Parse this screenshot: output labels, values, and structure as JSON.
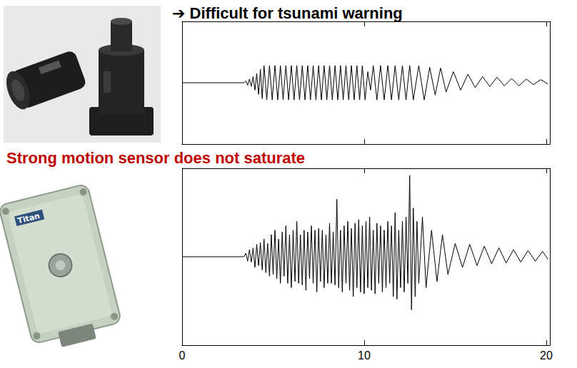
{
  "header": {
    "text": "➔ Difficult for tsunami warning",
    "color": "#000000"
  },
  "caption": {
    "text": "Strong motion sensor does not saturate",
    "color": "#c00000"
  },
  "images": {
    "strong_motion_label": "Titan"
  },
  "chart_data": [
    {
      "type": "line",
      "xlim": [
        0,
        20.2
      ],
      "xticks": [
        0,
        10,
        20
      ],
      "ylim": [
        -1,
        1
      ],
      "grid": false,
      "tick_labels": false,
      "series": [
        {
          "color": "#000000",
          "x": [
            0,
            3.4,
            3.5,
            3.6,
            3.7,
            3.8,
            3.9,
            4.0,
            4.1,
            4.2,
            4.3,
            4.4,
            4.5,
            4.65,
            4.8,
            4.95,
            5.1,
            5.25,
            5.4,
            5.55,
            5.7,
            5.85,
            6.0,
            6.15,
            6.3,
            6.45,
            6.6,
            6.75,
            6.9,
            7.05,
            7.2,
            7.35,
            7.5,
            7.65,
            7.8,
            7.95,
            8.1,
            8.25,
            8.4,
            8.55,
            8.7,
            8.85,
            9.0,
            9.15,
            9.3,
            9.45,
            9.6,
            9.75,
            9.9,
            10.05,
            10.2,
            10.35,
            10.5,
            10.7,
            10.9,
            11.1,
            11.3,
            11.5,
            11.7,
            11.9,
            12.1,
            12.3,
            12.5,
            12.7,
            13.0,
            13.3,
            13.6,
            13.9,
            14.2,
            14.5,
            14.9,
            15.3,
            15.7,
            16.1,
            16.5,
            16.9,
            17.3,
            17.7,
            18.1,
            18.5,
            18.9,
            19.3,
            19.7,
            20.1
          ],
          "values": [
            0,
            0,
            0.03,
            -0.04,
            0.06,
            -0.06,
            0.1,
            -0.12,
            0.15,
            -0.19,
            0.22,
            -0.26,
            0.28,
            -0.28,
            0.28,
            -0.28,
            0.28,
            -0.28,
            0.28,
            -0.28,
            0.28,
            -0.28,
            0.28,
            -0.28,
            0.28,
            -0.28,
            0.28,
            -0.28,
            0.28,
            -0.28,
            0.28,
            -0.28,
            0.28,
            -0.28,
            0.28,
            -0.28,
            0.28,
            -0.28,
            0.28,
            -0.28,
            0.28,
            -0.28,
            0.28,
            -0.28,
            0.28,
            -0.28,
            0.28,
            -0.28,
            0.28,
            -0.28,
            0.18,
            -0.12,
            0.28,
            -0.28,
            0.28,
            -0.28,
            0.28,
            -0.28,
            0.28,
            -0.28,
            0.28,
            -0.28,
            0.28,
            -0.28,
            0.28,
            -0.28,
            0.25,
            -0.2,
            0.24,
            -0.15,
            0.18,
            -0.12,
            0.14,
            -0.08,
            0.1,
            -0.06,
            0.09,
            -0.05,
            0.07,
            -0.05,
            0.06,
            -0.03,
            0.05,
            -0.02
          ]
        }
      ]
    },
    {
      "type": "line",
      "xlim": [
        0,
        20.2
      ],
      "xticks": [
        0,
        10,
        20
      ],
      "ylim": [
        -1,
        1
      ],
      "grid": false,
      "tick_labels": "x",
      "series": [
        {
          "color": "#000000",
          "x": [
            0,
            3.4,
            3.5,
            3.6,
            3.7,
            3.8,
            3.9,
            4.0,
            4.1,
            4.2,
            4.3,
            4.4,
            4.5,
            4.6,
            4.7,
            4.8,
            4.9,
            5.0,
            5.1,
            5.2,
            5.3,
            5.4,
            5.5,
            5.6,
            5.7,
            5.8,
            5.9,
            6.0,
            6.1,
            6.2,
            6.3,
            6.4,
            6.5,
            6.6,
            6.7,
            6.8,
            6.9,
            7.0,
            7.1,
            7.2,
            7.3,
            7.4,
            7.5,
            7.6,
            7.7,
            7.8,
            7.9,
            8.0,
            8.1,
            8.2,
            8.3,
            8.4,
            8.5,
            8.6,
            8.7,
            8.8,
            8.9,
            9.0,
            9.1,
            9.2,
            9.3,
            9.4,
            9.5,
            9.6,
            9.7,
            9.8,
            9.9,
            10.0,
            10.1,
            10.2,
            10.3,
            10.4,
            10.5,
            10.6,
            10.7,
            10.8,
            10.9,
            11.0,
            11.1,
            11.2,
            11.3,
            11.4,
            11.5,
            11.6,
            11.7,
            11.8,
            11.9,
            12.0,
            12.1,
            12.2,
            12.3,
            12.4,
            12.5,
            12.6,
            12.7,
            12.8,
            12.9,
            13.0,
            13.2,
            13.4,
            13.7,
            14.0,
            14.3,
            14.6,
            15.0,
            15.4,
            15.8,
            16.2,
            16.6,
            17.0,
            17.4,
            17.8,
            18.2,
            18.6,
            19.0,
            19.4,
            19.8,
            20.1
          ],
          "values": [
            0,
            0,
            0.04,
            -0.05,
            0.08,
            -0.06,
            0.1,
            -0.12,
            0.14,
            -0.1,
            0.16,
            -0.15,
            0.2,
            -0.18,
            0.15,
            -0.22,
            0.25,
            -0.2,
            0.3,
            -0.25,
            0.2,
            -0.3,
            0.28,
            -0.22,
            0.35,
            -0.3,
            0.25,
            -0.35,
            0.3,
            -0.28,
            0.4,
            -0.3,
            0.25,
            -0.32,
            0.3,
            -0.38,
            0.28,
            -0.25,
            0.35,
            -0.3,
            0.3,
            -0.4,
            0.32,
            -0.28,
            0.3,
            -0.35,
            0.25,
            -0.3,
            0.38,
            -0.3,
            0.28,
            -0.32,
            0.65,
            -0.35,
            0.3,
            -0.4,
            0.35,
            -0.3,
            0.4,
            -0.38,
            0.32,
            -0.45,
            0.38,
            -0.35,
            0.42,
            -0.4,
            0.35,
            -0.42,
            0.4,
            -0.35,
            0.45,
            -0.38,
            0.3,
            -0.42,
            0.38,
            -0.3,
            0.35,
            -0.4,
            0.3,
            -0.35,
            0.4,
            -0.3,
            0.35,
            -0.45,
            0.5,
            -0.48,
            0.3,
            -0.35,
            0.4,
            -0.4,
            0.45,
            -0.3,
            0.92,
            -0.6,
            0.55,
            -0.45,
            0.4,
            -0.3,
            0.45,
            -0.35,
            0.3,
            -0.28,
            0.25,
            -0.2,
            0.15,
            -0.12,
            0.14,
            -0.1,
            0.12,
            -0.08,
            0.1,
            -0.07,
            0.08,
            -0.06,
            0.07,
            -0.05,
            0.06,
            -0.03
          ]
        }
      ]
    }
  ]
}
